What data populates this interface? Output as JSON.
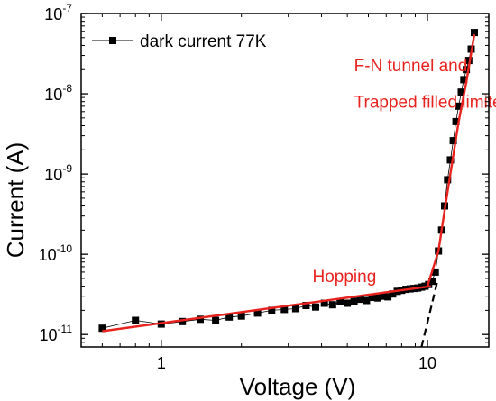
{
  "chart_data": {
    "type": "scatter",
    "xlabel": "Voltage (V)",
    "ylabel": "Current (A)",
    "x_scale": "log",
    "y_scale": "log",
    "xlim": [
      0.5,
      17
    ],
    "ylim": [
      7e-12,
      1e-07
    ],
    "x_ticks": [
      {
        "value": 1,
        "label": "1"
      },
      {
        "value": 10,
        "label": "10"
      }
    ],
    "y_ticks": [
      {
        "value": 1e-11,
        "base": "10",
        "exp": "-11"
      },
      {
        "value": 1e-10,
        "base": "10",
        "exp": "-10"
      },
      {
        "value": 1e-09,
        "base": "10",
        "exp": "-9"
      },
      {
        "value": 1e-08,
        "base": "10",
        "exp": "-8"
      },
      {
        "value": 1e-07,
        "base": "10",
        "exp": "-7"
      }
    ],
    "grid": false,
    "legend": {
      "position": "top-left",
      "entries": [
        "dark current 77K"
      ]
    },
    "series": [
      {
        "name": "dark current 77K",
        "color": "#000000",
        "marker": "square",
        "x": [
          0.6,
          0.8,
          1.0,
          1.2,
          1.4,
          1.6,
          1.8,
          2.0,
          2.3,
          2.6,
          2.9,
          3.2,
          3.5,
          3.8,
          4.1,
          4.4,
          4.7,
          5.0,
          5.3,
          5.6,
          5.9,
          6.2,
          6.5,
          6.8,
          7.1,
          7.4,
          7.7,
          8.0,
          8.3,
          8.6,
          8.9,
          9.2,
          9.5,
          9.8,
          10.1,
          10.4,
          10.7,
          11.0,
          11.3,
          11.6,
          11.9,
          12.2,
          12.5,
          12.8,
          13.1,
          13.4,
          13.7,
          14.0,
          14.3,
          14.6,
          15.0
        ],
        "y": [
          1.2e-11,
          1.5e-11,
          1.35e-11,
          1.45e-11,
          1.55e-11,
          1.5e-11,
          1.65e-11,
          1.7e-11,
          1.85e-11,
          2e-11,
          2.05e-11,
          2.1e-11,
          2.3e-11,
          2.2e-11,
          2.45e-11,
          2.35e-11,
          2.55e-11,
          2.45e-11,
          2.6e-11,
          2.75e-11,
          2.65e-11,
          2.9e-11,
          2.85e-11,
          3e-11,
          2.95e-11,
          3.2e-11,
          3.45e-11,
          3.55e-11,
          3.65e-11,
          3.7e-11,
          3.75e-11,
          3.8e-11,
          3.9e-11,
          4e-11,
          4.2e-11,
          4.6e-11,
          6e-11,
          1.1e-10,
          2e-10,
          4e-10,
          8.5e-10,
          1.5e-09,
          2.6e-09,
          4.5e-09,
          7e-09,
          1.05e-08,
          1.5e-08,
          2e-08,
          2.6e-08,
          3.6e-08,
          5.8e-08
        ]
      }
    ],
    "fit_lines": [
      {
        "label": "Hopping",
        "color": "#e8231f",
        "style": "solid",
        "points": [
          [
            0.6,
            1.1e-11
          ],
          [
            10.3,
            4e-11
          ]
        ]
      },
      {
        "label": "F-N tunnel and Trapped filled limited (TFL)",
        "color": "#e8231f",
        "style": "solid",
        "points": [
          [
            10.0,
            4e-11
          ],
          [
            11.0,
            1.1e-10
          ],
          [
            11.6,
            3.5e-10
          ],
          [
            12.3,
            1.2e-09
          ],
          [
            13.1,
            4.5e-09
          ],
          [
            14.0,
            1.4e-08
          ],
          [
            15.0,
            5.5e-08
          ]
        ]
      },
      {
        "label": "",
        "color": "#000000",
        "style": "dashed",
        "points": [
          [
            9.5,
            7e-12
          ],
          [
            10.9,
            4.6e-11
          ]
        ]
      }
    ],
    "annotations": [
      {
        "text": "F-N tunnel and",
        "color": "#e8231f",
        "x": 5.3,
        "y": 1.9e-08
      },
      {
        "text": "Trapped filled limited (TFL)",
        "color": "#e8231f",
        "x": 5.3,
        "y": 6.7e-09
      },
      {
        "text": "Hopping",
        "color": "#e8231f",
        "x": 3.7,
        "y": 4.5e-11
      }
    ]
  }
}
